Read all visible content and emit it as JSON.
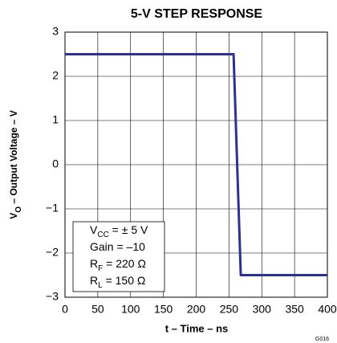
{
  "chart_data": {
    "type": "line",
    "title": "5-V STEP RESPONSE",
    "xlabel": "t – Time – ns",
    "ylabel": {
      "symbol": "V",
      "subscript": "O",
      "text": " – Output Voltage – V"
    },
    "x": [
      0,
      257,
      268,
      400
    ],
    "series": [
      {
        "color": "#2e3192",
        "values": [
          2.5,
          2.5,
          -2.5,
          -2.5
        ]
      }
    ],
    "xlim": [
      0,
      400
    ],
    "xticks": [
      0,
      50,
      100,
      150,
      200,
      250,
      300,
      350,
      400
    ],
    "ylim": [
      -3,
      3
    ],
    "yticks": [
      {
        "value": -3,
        "label": "−3"
      },
      {
        "value": -2,
        "label": "−2"
      },
      {
        "value": -1,
        "label": "−1"
      },
      0,
      1,
      2,
      3
    ],
    "grid": true,
    "annotations": [
      {
        "symbol": "V",
        "subscript": "CC",
        "text": " = ± 5 V"
      },
      {
        "symbol": "Gain = –10"
      },
      {
        "symbol": "R",
        "subscript": "F",
        "text": " = 220 Ω"
      },
      {
        "symbol": "R",
        "subscript": "L",
        "text": " = 150 Ω"
      }
    ],
    "code": "G016"
  }
}
